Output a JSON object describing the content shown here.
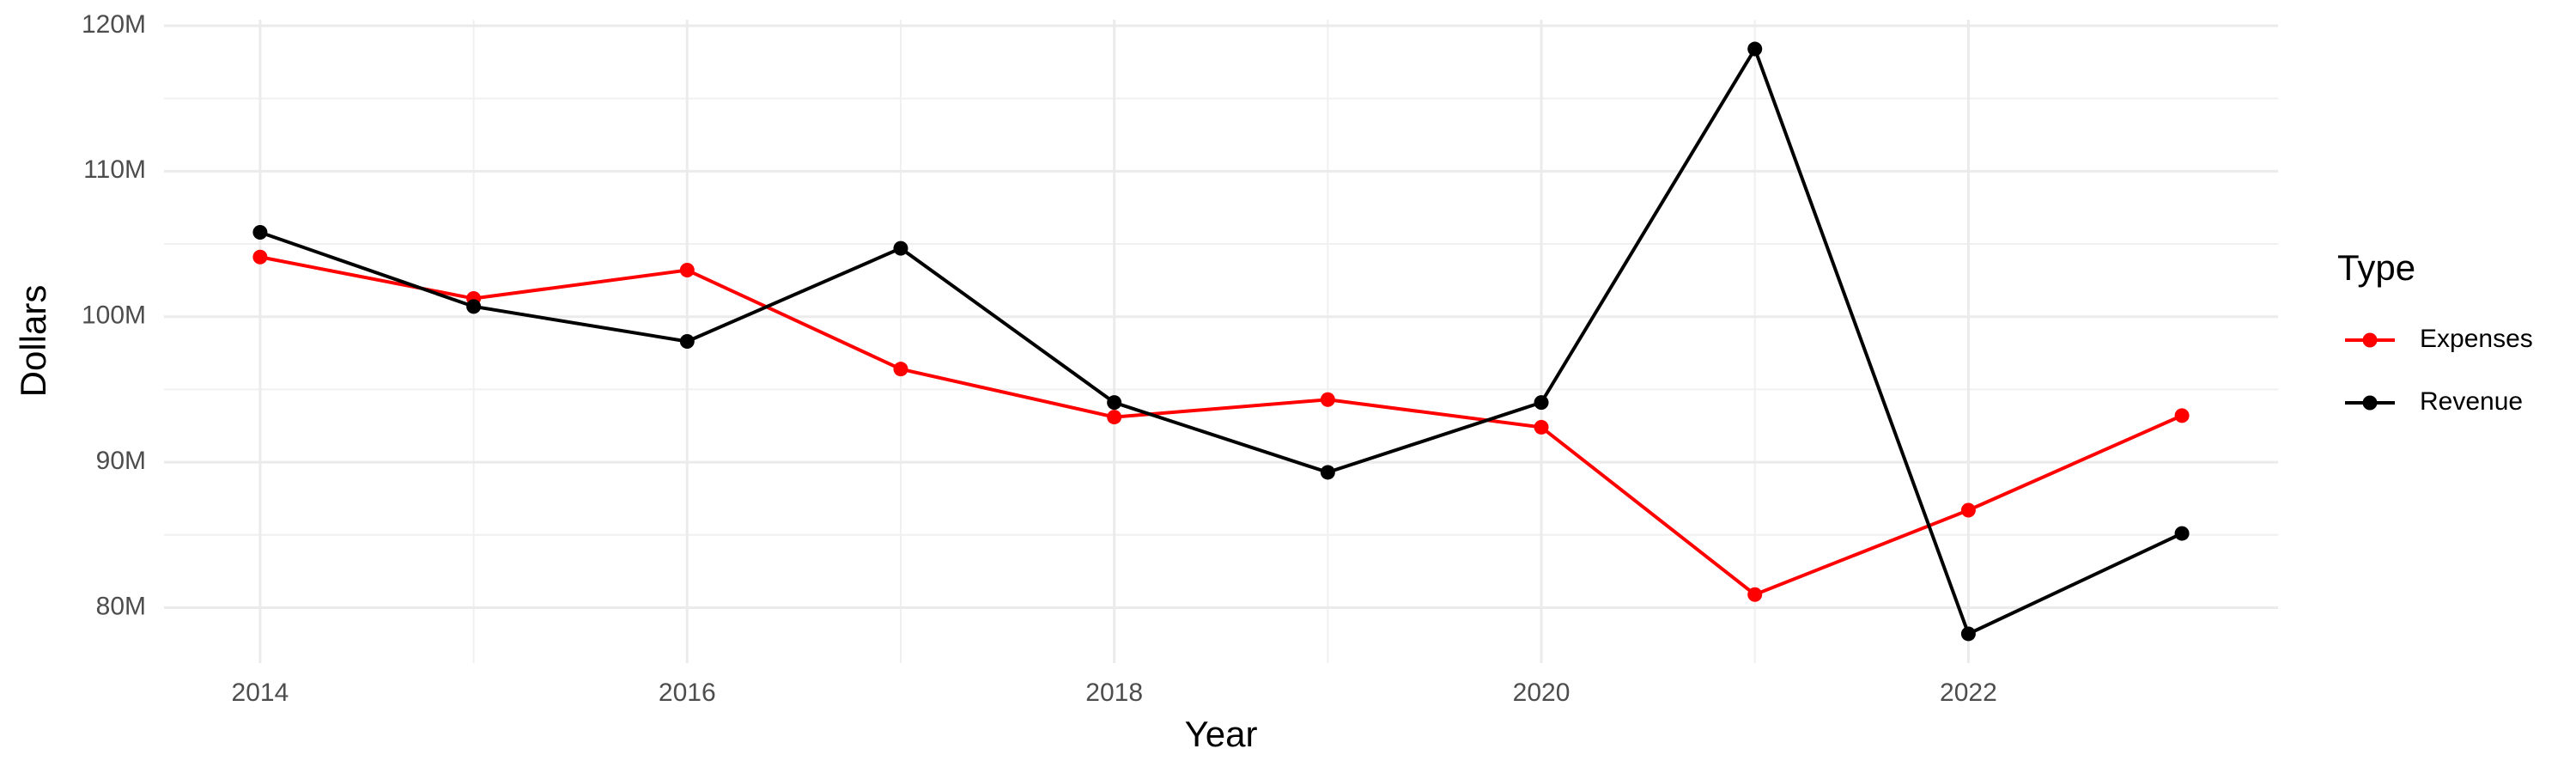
{
  "chart_data": {
    "type": "line",
    "x_label": "Year",
    "y_label": "Dollars",
    "x": [
      2014,
      2015,
      2016,
      2017,
      2018,
      2019,
      2020,
      2021,
      2022,
      2023
    ],
    "series": [
      {
        "name": "Expenses",
        "color": "#ff0000",
        "values": [
          104100000,
          101250000,
          103200000,
          96400000,
          93100000,
          94300000,
          92400000,
          80900000,
          86700000,
          93200000
        ]
      },
      {
        "name": "Revenue",
        "color": "#000000",
        "values": [
          105800000,
          100700000,
          98300000,
          104700000,
          94100000,
          89300000,
          94100000,
          118400000,
          78200000,
          85100000
        ]
      }
    ],
    "xlim": [
      2013.55,
      2023.45
    ],
    "xticks": [
      2014,
      2016,
      2018,
      2020,
      2022
    ],
    "ylim": [
      76190000,
      120410000
    ],
    "yticks": [
      {
        "value": 80000000,
        "label": "80M"
      },
      {
        "value": 90000000,
        "label": "90M"
      },
      {
        "value": 100000000,
        "label": "100M"
      },
      {
        "value": 110000000,
        "label": "110M"
      },
      {
        "value": 120000000,
        "label": "120M"
      }
    ],
    "grid": true,
    "legend_title": "Type",
    "legend": "right"
  }
}
